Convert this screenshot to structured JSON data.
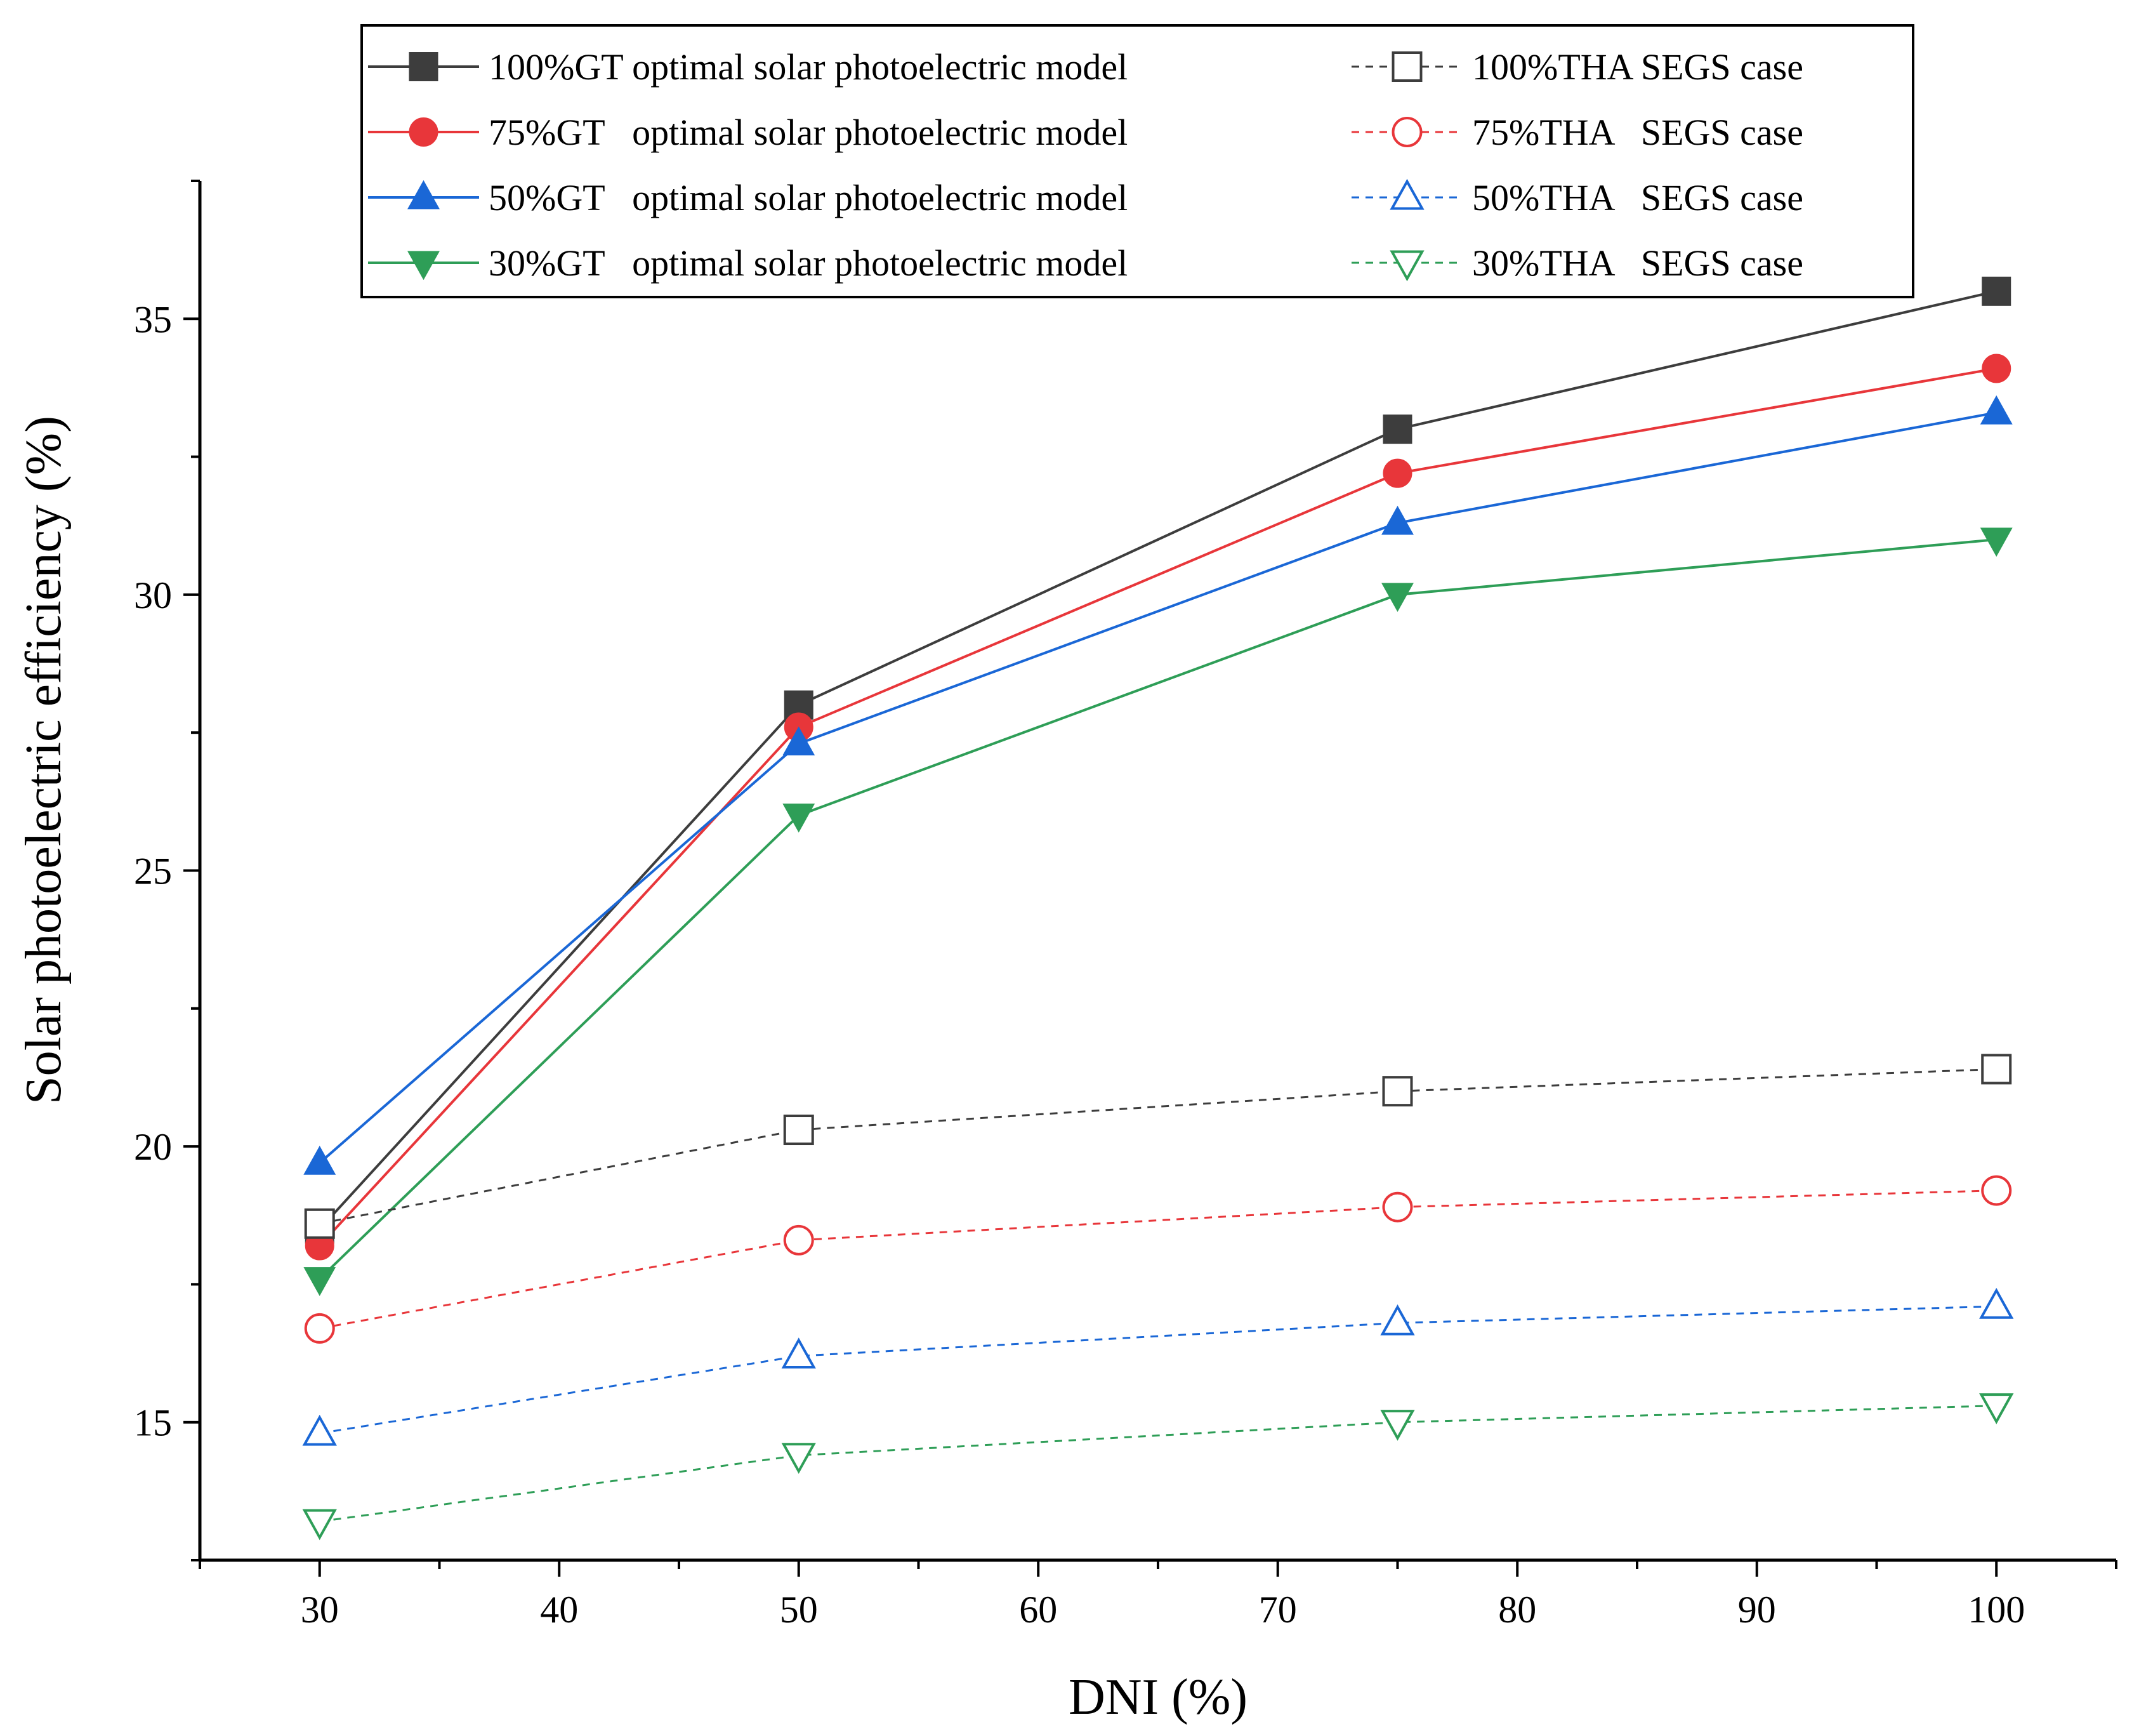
{
  "chart_data": {
    "type": "line",
    "xlabel": "DNI (%)",
    "ylabel": "Solar photoelectric efficiency (%)",
    "xlim": [
      25,
      105
    ],
    "ylim": [
      12.5,
      37.5
    ],
    "xticks": [
      30,
      40,
      50,
      60,
      70,
      80,
      90,
      100
    ],
    "yticks": [
      15,
      20,
      25,
      30,
      35
    ],
    "x": [
      30,
      50,
      75,
      100
    ],
    "legend_position": "top",
    "series": [
      {
        "name": "100%GT optimal solar photoelectric model",
        "values": [
          18.5,
          28.0,
          33.0,
          35.5
        ],
        "color": "#3d3d3d",
        "marker": "square",
        "filled": true,
        "dashed": false
      },
      {
        "name": "75%GT   optimal solar photoelectric model",
        "values": [
          18.2,
          27.6,
          32.2,
          34.1
        ],
        "color": "#e8363a",
        "marker": "circle",
        "filled": true,
        "dashed": false
      },
      {
        "name": "50%GT   optimal solar photoelectric model",
        "values": [
          19.7,
          27.3,
          31.3,
          33.3
        ],
        "color": "#1a67d6",
        "marker": "triangle-up",
        "filled": true,
        "dashed": false
      },
      {
        "name": "30%GT   optimal solar photoelectric model",
        "values": [
          17.6,
          26.0,
          30.0,
          31.0
        ],
        "color": "#2e9e57",
        "marker": "triangle-down",
        "filled": true,
        "dashed": false
      },
      {
        "name": "100%THA SEGS case",
        "values": [
          18.6,
          20.3,
          21.0,
          21.4
        ],
        "color": "#3d3d3d",
        "marker": "square",
        "filled": false,
        "dashed": true
      },
      {
        "name": "75%THA   SEGS case",
        "values": [
          16.7,
          18.3,
          18.9,
          19.2
        ],
        "color": "#e8363a",
        "marker": "circle",
        "filled": false,
        "dashed": true
      },
      {
        "name": "50%THA   SEGS case",
        "values": [
          14.8,
          16.2,
          16.8,
          17.1
        ],
        "color": "#1a67d6",
        "marker": "triangle-up",
        "filled": false,
        "dashed": true
      },
      {
        "name": "30%THA   SEGS case",
        "values": [
          13.2,
          14.4,
          15.0,
          15.3
        ],
        "color": "#2e9e57",
        "marker": "triangle-down",
        "filled": false,
        "dashed": true
      }
    ]
  }
}
